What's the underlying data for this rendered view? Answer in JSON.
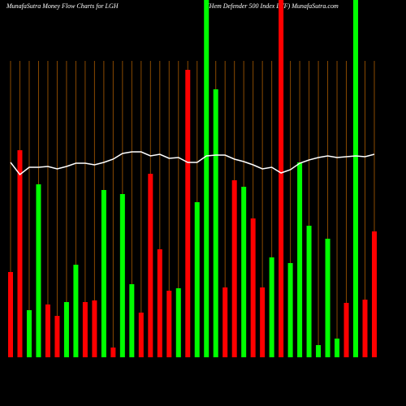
{
  "chart_data": {
    "type": "bar",
    "title": "MunafaSutra  Money  Flow  Charts for LGH",
    "subtitle": "(Hem Defender 500  Index ETF) MunafaSutra.com",
    "ylim": [
      0,
      440
    ],
    "grid": true,
    "grid_color": "#8a4a00",
    "series": [
      {
        "name": "money flow",
        "values": [
          105,
          255,
          58,
          213,
          65,
          51,
          68,
          114,
          68,
          70,
          206,
          12,
          201,
          90,
          55,
          226,
          133,
          82,
          85,
          354,
          191,
          440,
          330,
          86,
          218,
          210,
          171,
          86,
          123,
          440,
          116,
          240,
          162,
          15,
          146,
          23,
          67,
          440,
          71,
          155
        ],
        "colors": [
          "#ff0000",
          "#ff0000",
          "#00ff00",
          "#00ff00",
          "#ff0000",
          "#ff0000",
          "#00ff00",
          "#00ff00",
          "#ff0000",
          "#ff0000",
          "#00ff00",
          "#ff0000",
          "#00ff00",
          "#00ff00",
          "#ff0000",
          "#ff0000",
          "#ff0000",
          "#ff0000",
          "#00ff00",
          "#ff0000",
          "#00ff00",
          "#00ff00",
          "#00ff00",
          "#ff0000",
          "#ff0000",
          "#00ff00",
          "#ff0000",
          "#ff0000",
          "#00ff00",
          "#ff0000",
          "#00ff00",
          "#00ff00",
          "#00ff00",
          "#00ff00",
          "#00ff00",
          "#00ff00",
          "#ff0000",
          "#00ff00",
          "#ff0000",
          "#ff0000"
        ]
      }
    ],
    "line": {
      "color": "#ffffff",
      "values": [
        240,
        225,
        234,
        234,
        235,
        232,
        235,
        239,
        239,
        237,
        240,
        244,
        251,
        253,
        253,
        248,
        250,
        245,
        246,
        240,
        240,
        248,
        249,
        249,
        244,
        241,
        237,
        232,
        234,
        227,
        231,
        239,
        243,
        246,
        248,
        246,
        247,
        248,
        247,
        250
      ]
    }
  }
}
